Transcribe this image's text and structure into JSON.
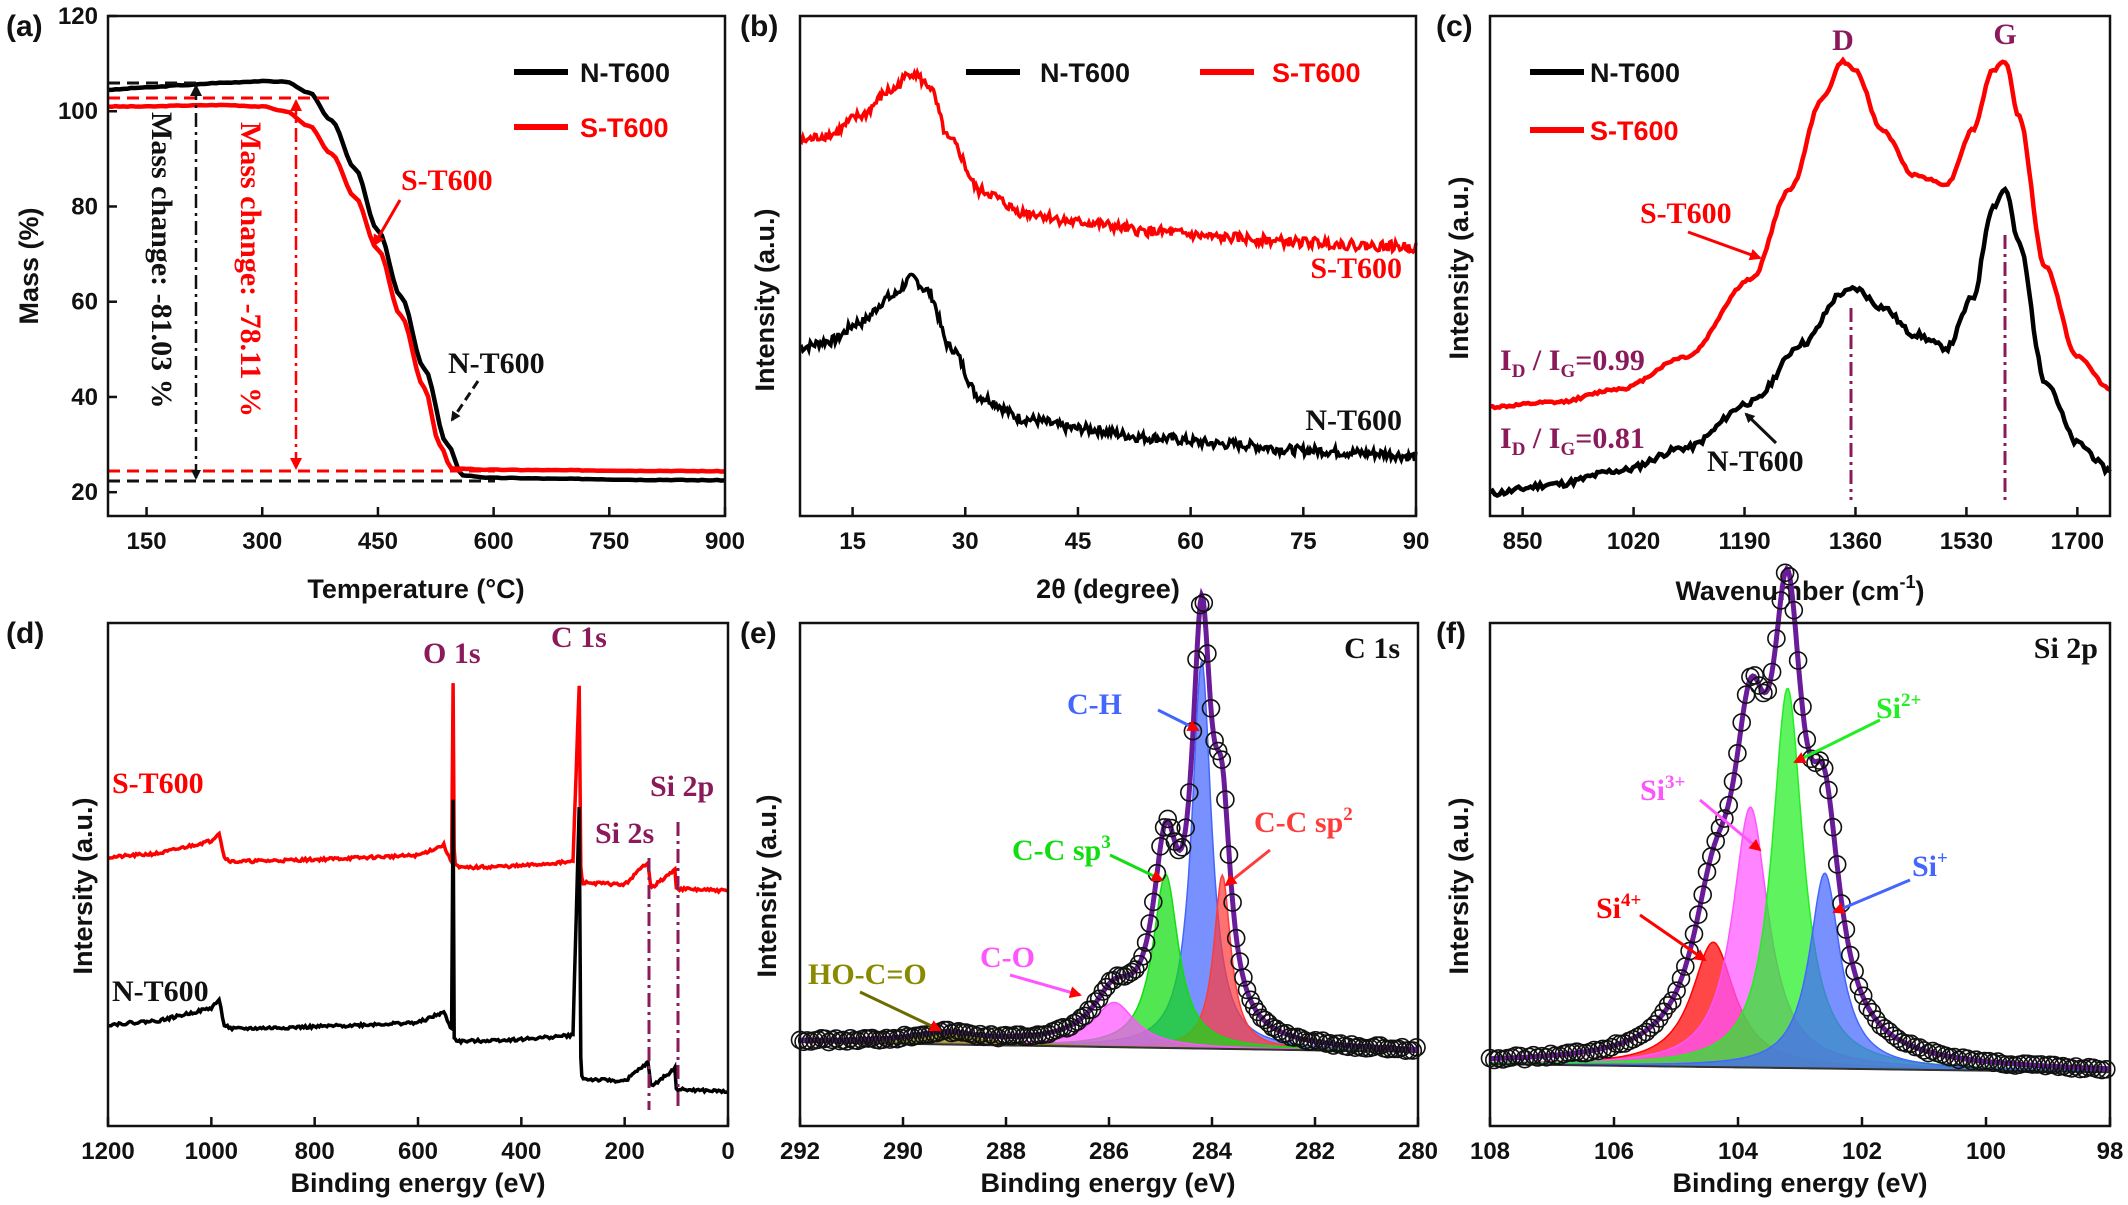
{
  "chart_data": [
    {
      "panel": "(a)",
      "type": "line",
      "xlabel": "Temperature (°C)",
      "ylabel": "Mass (%)",
      "xlim": [
        100,
        900
      ],
      "ylim": [
        15,
        120
      ],
      "xticks": [
        150,
        300,
        450,
        600,
        750,
        900
      ],
      "yticks": [
        20,
        40,
        60,
        80,
        100,
        120
      ],
      "legend_position": "top-right",
      "series": [
        {
          "name": "N-T600",
          "color": "#000000",
          "x": [
            100,
            150,
            200,
            250,
            300,
            330,
            360,
            390,
            420,
            450,
            480,
            510,
            540,
            560,
            600,
            700,
            800,
            900
          ],
          "y": [
            104.5,
            105,
            105.5,
            106,
            106.3,
            106.2,
            104,
            98,
            88,
            75,
            61,
            46,
            30,
            23.5,
            23,
            22.8,
            22.6,
            22.5
          ]
        },
        {
          "name": "S-T600",
          "color": "#ff0000",
          "x": [
            100,
            150,
            200,
            250,
            300,
            330,
            360,
            390,
            420,
            450,
            480,
            510,
            530,
            545,
            600,
            700,
            800,
            900
          ],
          "y": [
            101,
            101,
            101.2,
            101.3,
            101,
            100,
            97,
            91,
            82,
            71,
            57,
            42,
            30,
            25,
            24.7,
            24.6,
            24.5,
            24.4
          ]
        }
      ],
      "annotations": [
        "Mass change: -81.03 %",
        "Mass change: -78.11 %",
        "S-T600",
        "N-T600"
      ]
    },
    {
      "panel": "(b)",
      "type": "line",
      "xlabel": "2θ (degree)",
      "ylabel": "Intensity (a.u.)",
      "xlim": [
        8,
        90
      ],
      "xticks": [
        15,
        30,
        45,
        60,
        75,
        90
      ],
      "legend_position": "top",
      "series": [
        {
          "name": "N-T600",
          "color": "#000000",
          "x": [
            8,
            12,
            16,
            20,
            23,
            25,
            28,
            32,
            38,
            45,
            55,
            65,
            75,
            85,
            90
          ],
          "y": [
            47,
            48,
            51,
            55,
            58,
            56,
            47,
            39,
            35.5,
            34,
            32.5,
            31.5,
            30.5,
            30,
            29.5
          ]
        },
        {
          "name": "S-T600",
          "color": "#ff0000",
          "x": [
            8,
            12,
            16,
            20,
            23,
            25,
            28,
            32,
            38,
            45,
            55,
            65,
            75,
            85,
            90
          ],
          "y": [
            80,
            81,
            84,
            88,
            91,
            89,
            80,
            72,
            68.5,
            67,
            65.5,
            64.5,
            63.8,
            63.2,
            63
          ]
        }
      ],
      "annotations": [
        "S-T600",
        "N-T600"
      ]
    },
    {
      "panel": "(c)",
      "type": "line",
      "xlabel": "Wavenumber (cm⁻¹)",
      "ylabel": "Intensity (a.u.)",
      "xlim": [
        800,
        1750
      ],
      "xticks": [
        850,
        1020,
        1190,
        1360,
        1530,
        1700
      ],
      "legend_position": "top-left",
      "series": [
        {
          "name": "N-T600",
          "color": "#000000",
          "x": [
            800,
            900,
            1000,
            1100,
            1200,
            1280,
            1340,
            1360,
            1400,
            1450,
            1500,
            1540,
            1570,
            1590,
            1610,
            1650,
            1700,
            1750
          ],
          "y": [
            5,
            7,
            10,
            15,
            25,
            38,
            49,
            50,
            46,
            40,
            37,
            48,
            68,
            72,
            60,
            30,
            16,
            10
          ]
        },
        {
          "name": "S-T600",
          "color": "#ff0000",
          "x": [
            800,
            900,
            1000,
            1100,
            1200,
            1260,
            1310,
            1340,
            1360,
            1400,
            1450,
            1500,
            1540,
            1570,
            1590,
            1610,
            1650,
            1700,
            1750
          ],
          "y": [
            24,
            25,
            28,
            35,
            52,
            72,
            92,
            100,
            98,
            85,
            75,
            73,
            85,
            98,
            100,
            88,
            55,
            35,
            28
          ]
        }
      ],
      "annotations": [
        "D",
        "G",
        "S-T600",
        "N-T600",
        "ID / IG=0.99",
        "ID / IG=0.81"
      ]
    },
    {
      "panel": "(d)",
      "type": "line",
      "xlabel": "Binding energy (eV)",
      "ylabel": "Intersity (a.u.)",
      "xlim": [
        1200,
        0
      ],
      "xticks": [
        1200,
        1000,
        800,
        600,
        400,
        200,
        0
      ],
      "series": [
        {
          "name": "S-T600",
          "color": "#ff0000",
          "x": [
            1200,
            1100,
            1000,
            985,
            975,
            960,
            800,
            600,
            550,
            540,
            535,
            532,
            530,
            528,
            520,
            400,
            300,
            288,
            285,
            283,
            280,
            200,
            155,
            150,
            145,
            103,
            100,
            97,
            0
          ],
          "y": [
            58,
            59,
            62,
            64,
            58,
            57,
            57.5,
            58.5,
            61,
            58,
            57,
            100,
            60,
            56.5,
            55.5,
            56,
            57,
            99,
            56,
            53,
            52,
            51.5,
            57,
            51.5,
            51,
            55,
            51,
            50.5,
            50
          ]
        },
        {
          "name": "N-T600",
          "color": "#000000",
          "x": [
            1200,
            1100,
            1000,
            985,
            975,
            960,
            800,
            600,
            550,
            540,
            535,
            532,
            530,
            528,
            520,
            400,
            300,
            288,
            285,
            283,
            280,
            200,
            155,
            150,
            145,
            103,
            100,
            97,
            0
          ],
          "y": [
            18,
            19,
            22,
            24,
            18,
            17,
            17.5,
            18.5,
            21,
            18,
            17,
            72,
            15,
            14.5,
            14,
            14.5,
            15.5,
            70,
            10,
            6,
            5,
            4.5,
            9,
            4,
            3.5,
            7.5,
            3,
            2.5,
            2
          ]
        }
      ],
      "annotations": [
        "O 1s",
        "C 1s",
        "Si 2s",
        "Si 2p",
        "S-T600",
        "N-T600"
      ]
    },
    {
      "panel": "(e)",
      "type": "line",
      "title": "C 1s",
      "xlabel": "Binding energy (eV)",
      "ylabel": "Intensity (a.u.)",
      "xlim": [
        292,
        280
      ],
      "xticks": [
        292,
        290,
        288,
        286,
        284,
        282,
        280
      ],
      "components": [
        {
          "name": "C-H",
          "center": 284.2,
          "height": 78,
          "width": 0.23,
          "color": "#4466ff"
        },
        {
          "name": "C-C sp2",
          "center": 283.8,
          "height": 35,
          "width": 0.2,
          "color": "#ff3b3b"
        },
        {
          "name": "C-C sp3",
          "center": 284.9,
          "height": 35,
          "width": 0.3,
          "color": "#11dd11"
        },
        {
          "name": "C-O",
          "center": 285.9,
          "height": 9,
          "width": 0.5,
          "color": "#ff55ff"
        },
        {
          "name": "HO-C=O",
          "center": 289.2,
          "height": 2,
          "width": 0.8,
          "color": "#8a8a00"
        }
      ],
      "baseline": [
        2,
        0
      ],
      "annotations": [
        "C-H",
        "C-C sp3",
        "C-C sp2",
        "C-O",
        "HO-C=O"
      ]
    },
    {
      "panel": "(f)",
      "type": "line",
      "title": "Si 2p",
      "xlabel": "Binding energy (eV)",
      "ylabel": "Intersity (a.u.)",
      "xlim": [
        108,
        98
      ],
      "xticks": [
        108,
        106,
        104,
        102,
        100,
        98
      ],
      "components": [
        {
          "name": "Si4+",
          "center": 104.4,
          "height": 23,
          "width": 0.42,
          "color": "#ff0000"
        },
        {
          "name": "Si3+",
          "center": 103.8,
          "height": 48,
          "width": 0.35,
          "color": "#ff55ff"
        },
        {
          "name": "Si2+",
          "center": 103.2,
          "height": 70,
          "width": 0.3,
          "color": "#22ee22"
        },
        {
          "name": "Si+",
          "center": 102.6,
          "height": 36,
          "width": 0.3,
          "color": "#4466ff"
        }
      ],
      "baseline": [
        2,
        0.5
      ],
      "annotations": [
        "Si4+",
        "Si3+",
        "Si2+",
        "Si+"
      ]
    }
  ],
  "labels": {
    "a": {
      "panel": "(a)",
      "xlabel": "Temperature (°C)",
      "ylabel": "Mass (%)",
      "legend_n": "N-T600",
      "legend_s": "S-T600",
      "mass_black": "Mass change: -81.03 %",
      "mass_red": "Mass change: -78.11 %",
      "ann_s": "S-T600",
      "ann_n": "N-T600",
      "xticks": [
        "150",
        "300",
        "450",
        "600",
        "750",
        "900"
      ],
      "yticks": [
        "20",
        "40",
        "60",
        "80",
        "100",
        "120"
      ]
    },
    "b": {
      "panel": "(b)",
      "xlabel": "2θ (degree)",
      "ylabel": "Intensity (a.u.)",
      "legend_n": "N-T600",
      "legend_s": "S-T600",
      "ann_s": "S-T600",
      "ann_n": "N-T600",
      "xticks": [
        "15",
        "30",
        "45",
        "60",
        "75",
        "90"
      ]
    },
    "c": {
      "panel": "(c)",
      "xlabel_main": "Wavenumber (cm",
      "xlabel_sup": "-1",
      "xlabel_close": ")",
      "ylabel": "Intensity (a.u.)",
      "legend_n": "N-T600",
      "legend_s": "S-T600",
      "peak_d": "D",
      "peak_g": "G",
      "ann_s": "S-T600",
      "ann_n": "N-T600",
      "ratio_i": "I",
      "ratio_d": "D",
      "ratio_sep": " / I",
      "ratio_g": "G",
      "ratio_s_val": "=0.99",
      "ratio_n_val": "=0.81",
      "xticks": [
        "850",
        "1020",
        "1190",
        "1360",
        "1530",
        "1700"
      ]
    },
    "d": {
      "panel": "(d)",
      "xlabel": "Binding energy (eV)",
      "ylabel": "Intersity (a.u.)",
      "o1s": "O 1s",
      "c1s": "C 1s",
      "si2s": "Si 2s",
      "si2p": "Si 2p",
      "ann_s": "S-T600",
      "ann_n": "N-T600",
      "xticks": [
        "1200",
        "1000",
        "800",
        "600",
        "400",
        "200",
        "0"
      ]
    },
    "e": {
      "panel": "(e)",
      "title": "C 1s",
      "xlabel": "Binding energy (eV)",
      "ylabel": "Intensity (a.u.)",
      "ch": "C-H",
      "ccsp3": "C-C sp",
      "ccsp3_sup": "3",
      "ccsp2": "C-C sp",
      "ccsp2_sup": "2",
      "co": "C-O",
      "hocoo": "HO-C=O",
      "xticks": [
        "292",
        "290",
        "288",
        "286",
        "284",
        "282",
        "280"
      ]
    },
    "f": {
      "panel": "(f)",
      "title": "Si 2p",
      "xlabel": "Binding energy (eV)",
      "ylabel": "Intersity (a.u.)",
      "si": "Si",
      "si4": "4+",
      "si3": "3+",
      "si2": "2+",
      "si1": "+",
      "xticks": [
        "108",
        "106",
        "104",
        "102",
        "100",
        "98"
      ]
    }
  }
}
